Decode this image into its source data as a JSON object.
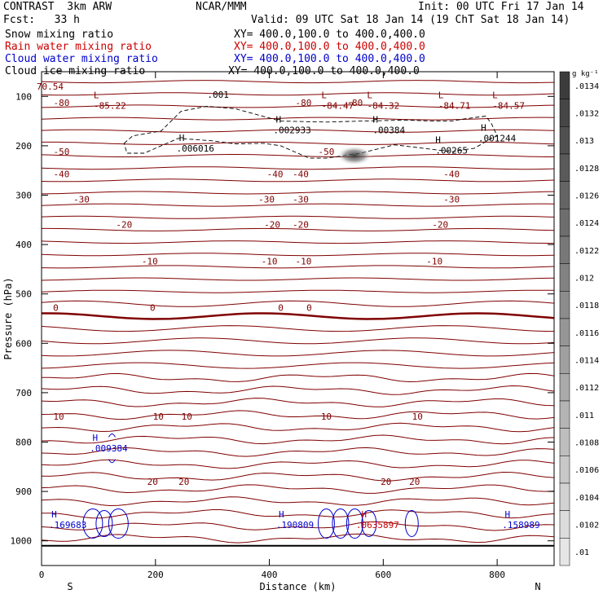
{
  "header": {
    "title_left": "CONTRAST  3km ARW",
    "title_center": "NCAR/MMM",
    "init": "Init: 00 UTC Fri 17 Jan 14",
    "fcst": "Fcst:   33 h",
    "valid": "Valid: 09 UTC Sat 18 Jan 14 (19 ChT Sat 18 Jan 14)"
  },
  "fields": [
    {
      "name": "Snow mixing ratio",
      "xy": "XY= 400.0,100.0 to 400.0,400.0",
      "color": "#000000"
    },
    {
      "name": "Rain water mixing ratio",
      "xy": "XY= 400.0,100.0 to 400.0,400.0",
      "color": "#cc0000"
    },
    {
      "name": "Cloud water mixing ratio",
      "xy": "XY= 400.0,100.0 to 400.0,400.0",
      "color": "#0000cc"
    },
    {
      "name": "Cloud ice mixing ratio",
      "xy": "XY= 400.0,100.0 to 400.0,400.0",
      "color": "#000000"
    }
  ],
  "chart_data": {
    "type": "contour-cross-section",
    "xlabel": "Distance (km)",
    "ylabel": "Pressure (hPa)",
    "xlim": [
      0,
      900
    ],
    "ylim": [
      1050,
      50
    ],
    "x_ticks": [
      0,
      200,
      400,
      600,
      800
    ],
    "y_ticks": [
      100,
      200,
      300,
      400,
      500,
      600,
      700,
      800,
      900,
      1000
    ],
    "endpoint_left": "S",
    "endpoint_right": "N",
    "colorbar_unit": "g kg⁻¹",
    "colorbar_ticks": [
      ".0134",
      ".0132",
      ".013",
      ".0128",
      ".0126",
      ".0124",
      ".0122",
      ".012",
      ".0118",
      ".0116",
      ".0114",
      ".0112",
      ".011",
      ".0108",
      ".0106",
      ".0104",
      ".0102",
      ".01"
    ],
    "temperature_labels": [
      {
        "text": "70.54",
        "x": 15,
        "p": 80
      },
      {
        "text": "-80",
        "x": 35,
        "p": 113
      },
      {
        "text": "-80",
        "x": 550,
        "p": 113
      },
      {
        "text": "-80",
        "x": 460,
        "p": 113
      },
      {
        "text": "-50",
        "x": 35,
        "p": 212
      },
      {
        "text": "-50",
        "x": 500,
        "p": 212
      },
      {
        "text": "-40",
        "x": 35,
        "p": 257
      },
      {
        "text": "-40",
        "x": 410,
        "p": 257
      },
      {
        "text": "-40",
        "x": 455,
        "p": 257
      },
      {
        "text": "-40",
        "x": 720,
        "p": 257
      },
      {
        "text": "-30",
        "x": 70,
        "p": 308
      },
      {
        "text": "-30",
        "x": 395,
        "p": 308
      },
      {
        "text": "-30",
        "x": 455,
        "p": 308
      },
      {
        "text": "-30",
        "x": 720,
        "p": 308
      },
      {
        "text": "-20",
        "x": 145,
        "p": 359
      },
      {
        "text": "-20",
        "x": 405,
        "p": 359
      },
      {
        "text": "-20",
        "x": 455,
        "p": 359
      },
      {
        "text": "-20",
        "x": 700,
        "p": 359
      },
      {
        "text": "-10",
        "x": 190,
        "p": 434
      },
      {
        "text": "-10",
        "x": 400,
        "p": 434
      },
      {
        "text": "-10",
        "x": 460,
        "p": 434
      },
      {
        "text": "-10",
        "x": 690,
        "p": 434
      },
      {
        "text": "0",
        "x": 25,
        "p": 528
      },
      {
        "text": "0",
        "x": 195,
        "p": 528
      },
      {
        "text": "0",
        "x": 420,
        "p": 528
      },
      {
        "text": "0",
        "x": 470,
        "p": 528
      },
      {
        "text": "10",
        "x": 30,
        "p": 748
      },
      {
        "text": "10",
        "x": 205,
        "p": 748
      },
      {
        "text": "10",
        "x": 255,
        "p": 748
      },
      {
        "text": "10",
        "x": 500,
        "p": 748
      },
      {
        "text": "10",
        "x": 660,
        "p": 748
      },
      {
        "text": "20",
        "x": 195,
        "p": 880
      },
      {
        "text": "20",
        "x": 250,
        "p": 880
      },
      {
        "text": "20",
        "x": 605,
        "p": 880
      },
      {
        "text": "20",
        "x": 655,
        "p": 880
      }
    ],
    "extrema": [
      {
        "kind": "L",
        "value": "-85.22",
        "x": 120,
        "p": 120,
        "color": "#800000"
      },
      {
        "kind": "L",
        "value": "-84.47",
        "x": 520,
        "p": 120,
        "color": "#800000"
      },
      {
        "kind": "L",
        "value": "-84.32",
        "x": 600,
        "p": 120,
        "color": "#800000"
      },
      {
        "kind": "L",
        "value": "-84.71",
        "x": 725,
        "p": 120,
        "color": "#800000"
      },
      {
        "kind": "L",
        "value": "-84.57",
        "x": 820,
        "p": 120,
        "color": "#800000"
      },
      {
        "kind": "H",
        "value": ".002933",
        "x": 440,
        "p": 170,
        "color": "#000000"
      },
      {
        "kind": "H",
        "value": ".00384",
        "x": 610,
        "p": 170,
        "color": "#000000"
      },
      {
        "kind": "H",
        "value": ".001244",
        "x": 800,
        "p": 186,
        "color": "#000000"
      },
      {
        "kind": "H",
        "value": ".006016",
        "x": 270,
        "p": 207,
        "color": "#000000"
      },
      {
        "kind": "H",
        "value": ".00265",
        "x": 720,
        "p": 211,
        "color": "#000000"
      },
      {
        "kind": "H",
        "value": ".009384",
        "x": 118,
        "p": 814,
        "color": "#0000cc"
      },
      {
        "kind": "H",
        "value": ".169683",
        "x": 46,
        "p": 969,
        "color": "#0000cc"
      },
      {
        "kind": "H",
        "value": ".190809",
        "x": 445,
        "p": 969,
        "color": "#0000cc"
      },
      {
        "kind": "H",
        "value": ".0635897",
        "x": 590,
        "p": 969,
        "color": "#cc0000"
      },
      {
        "kind": "H",
        "value": ".158989",
        "x": 842,
        "p": 969,
        "color": "#0000cc"
      }
    ],
    "cloud_ice_label": {
      "text": ".001",
      "x": 310,
      "p": 103
    }
  }
}
